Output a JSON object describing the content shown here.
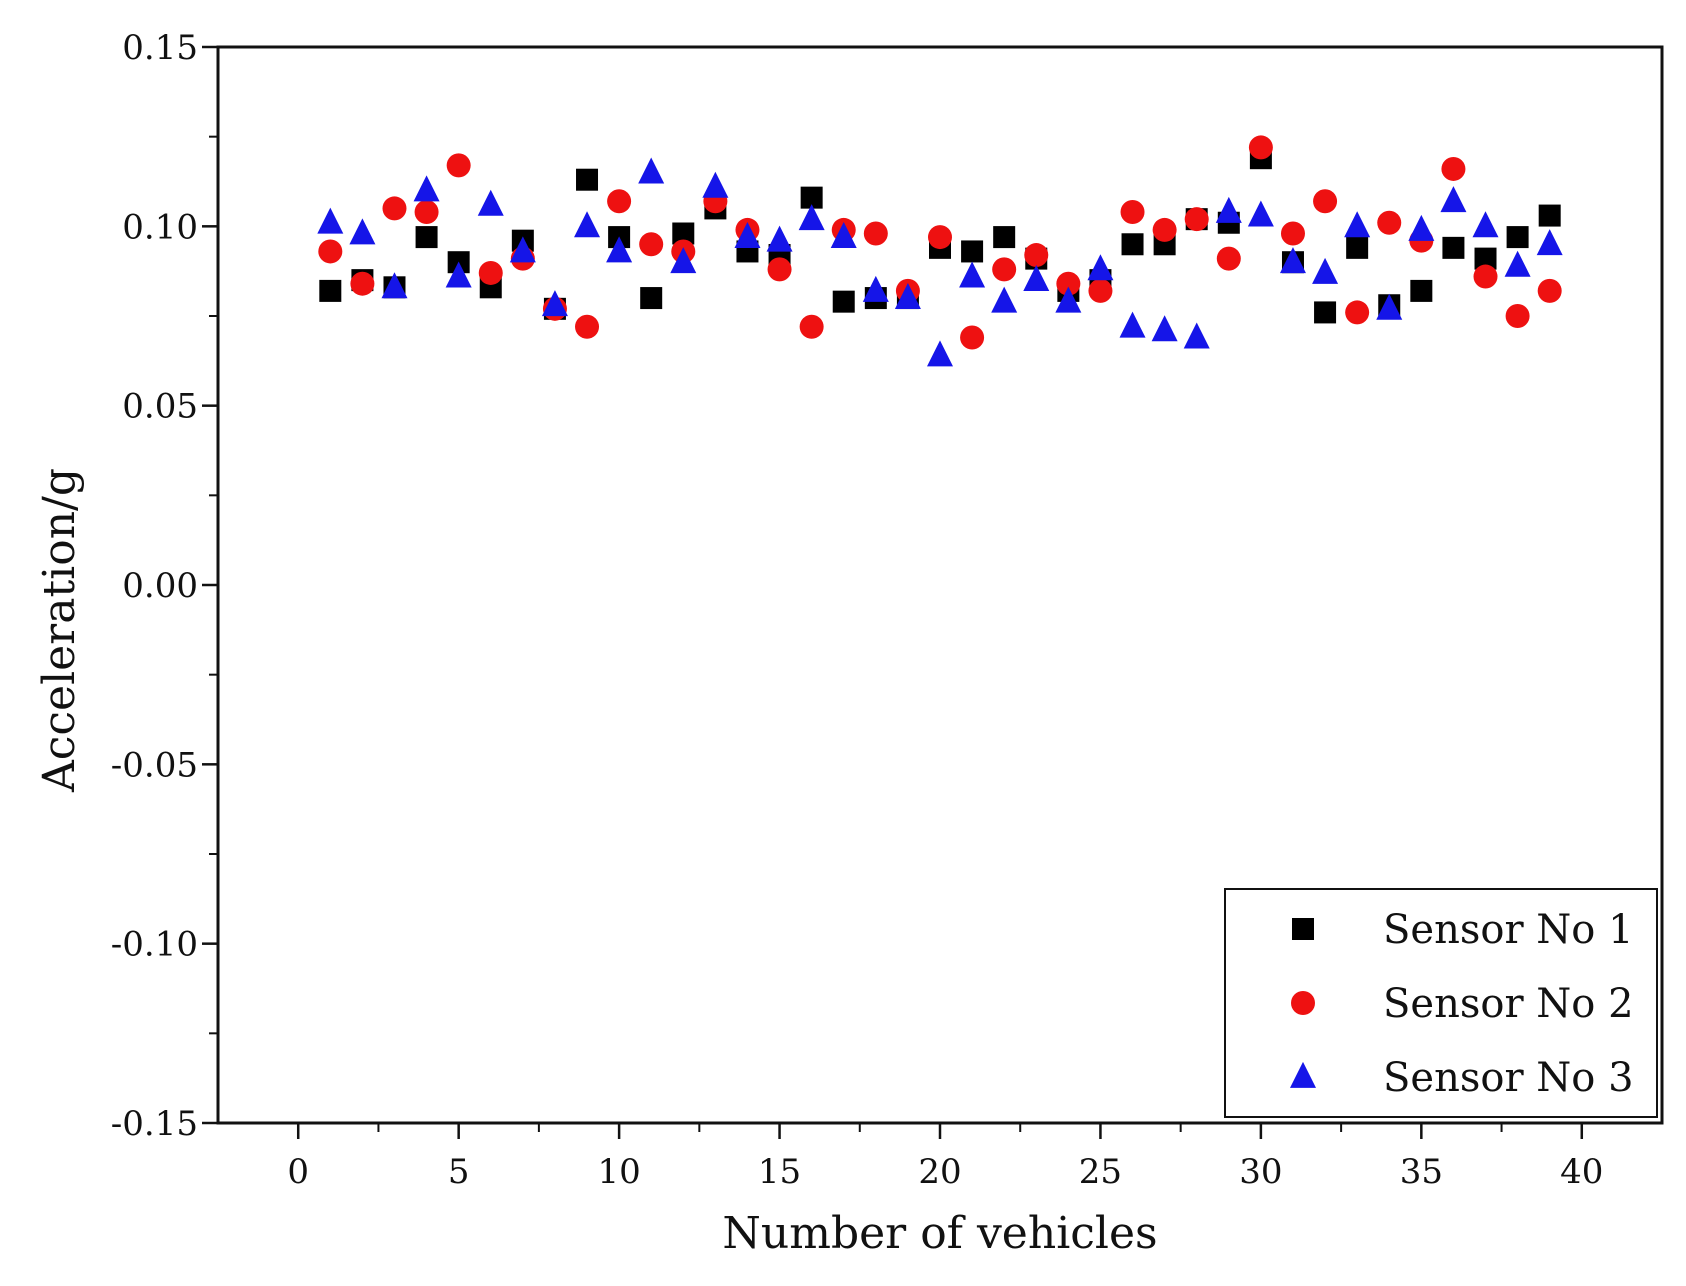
{
  "chart_data": {
    "type": "scatter",
    "title": "",
    "xlabel": "Number of vehicles",
    "ylabel": "Acceleration/g",
    "xlim": [
      -2.5,
      42.5
    ],
    "ylim": [
      -0.15,
      0.15
    ],
    "xticks": [
      0,
      5,
      10,
      15,
      20,
      25,
      30,
      35,
      40
    ],
    "xtick_labels": [
      "0",
      "5",
      "10",
      "15",
      "20",
      "25",
      "30",
      "35",
      "40"
    ],
    "yticks": [
      -0.15,
      -0.1,
      -0.05,
      0.0,
      0.05,
      0.1,
      0.15
    ],
    "ytick_labels": [
      "-0.15",
      "-0.10",
      "-0.05",
      "0.00",
      "0.05",
      "0.10",
      "0.15"
    ],
    "grid": false,
    "legend_position": "bottom-right",
    "x": [
      1,
      2,
      3,
      4,
      5,
      6,
      7,
      8,
      9,
      10,
      11,
      12,
      13,
      14,
      15,
      16,
      17,
      18,
      19,
      20,
      21,
      22,
      23,
      24,
      25,
      26,
      27,
      28,
      29,
      30,
      31,
      32,
      33,
      34,
      35,
      36,
      37,
      38,
      39
    ],
    "series": [
      {
        "name": "Sensor No 1",
        "marker": "square",
        "color": "#000000",
        "values": [
          0.082,
          0.085,
          0.083,
          0.097,
          0.09,
          0.083,
          0.096,
          0.077,
          0.113,
          0.097,
          0.08,
          0.098,
          0.105,
          0.093,
          0.092,
          0.108,
          0.079,
          0.08,
          0.08,
          0.094,
          0.093,
          0.097,
          0.091,
          0.082,
          0.085,
          0.095,
          0.095,
          0.102,
          0.101,
          0.119,
          0.09,
          0.076,
          0.094,
          0.078,
          0.082,
          0.094,
          0.091,
          0.097,
          0.103
        ]
      },
      {
        "name": "Sensor No 2",
        "marker": "circle",
        "color": "#ee1111",
        "values": [
          0.093,
          0.084,
          0.105,
          0.104,
          0.117,
          0.087,
          0.091,
          0.077,
          0.072,
          0.107,
          0.095,
          0.093,
          0.107,
          0.099,
          0.088,
          0.072,
          0.099,
          0.098,
          0.082,
          0.097,
          0.069,
          0.088,
          0.092,
          0.084,
          0.082,
          0.104,
          0.099,
          0.102,
          0.091,
          0.122,
          0.098,
          0.107,
          0.076,
          0.101,
          0.096,
          0.116,
          0.086,
          0.075,
          0.082
        ]
      },
      {
        "name": "Sensor No 3",
        "marker": "triangle",
        "color": "#1515e8",
        "values": [
          0.101,
          0.098,
          0.083,
          0.11,
          0.086,
          0.106,
          0.093,
          0.078,
          0.1,
          0.093,
          0.115,
          0.09,
          0.111,
          0.097,
          0.096,
          0.102,
          0.097,
          0.082,
          0.08,
          0.064,
          0.086,
          0.079,
          0.085,
          0.079,
          0.088,
          0.072,
          0.071,
          0.069,
          0.104,
          0.103,
          0.09,
          0.087,
          0.1,
          0.077,
          0.099,
          0.107,
          0.1,
          0.089,
          0.095
        ]
      }
    ]
  }
}
